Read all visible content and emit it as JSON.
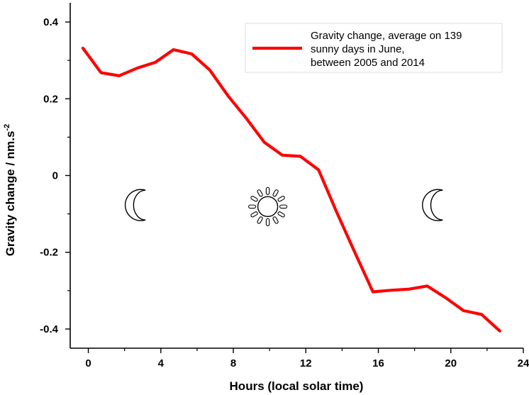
{
  "chart_data": {
    "type": "line",
    "xlabel": "Hours (local solar time)",
    "ylabel": "Gravity change / nm.s",
    "ylabel_superscript": "-2",
    "xlim": [
      -1,
      24
    ],
    "ylim": [
      -0.45,
      0.45
    ],
    "x_ticks": [
      0,
      4,
      8,
      12,
      16,
      20,
      24
    ],
    "x_tick_labels": [
      "0",
      "4",
      "8",
      "12",
      "16",
      "20",
      "24"
    ],
    "y_ticks": [
      0.4,
      0.2,
      0,
      -0.2,
      -0.4
    ],
    "y_tick_labels": [
      "0.4",
      "0.2",
      "0",
      "-0.2",
      "-0.4"
    ],
    "grid": false,
    "legend_position": "top-right",
    "series": [
      {
        "name_lines": [
          "Gravity change, average on 139",
          "sunny days in June,",
          "between 2005 and 2014"
        ],
        "color": "#ff0000",
        "x": [
          -0.3,
          0.7,
          1.7,
          2.7,
          3.7,
          4.7,
          5.7,
          6.7,
          7.7,
          8.7,
          9.7,
          10.7,
          11.7,
          12.7,
          13.7,
          14.7,
          15.7,
          16.7,
          17.7,
          18.7,
          19.7,
          20.7,
          21.7,
          22.7
        ],
        "y": [
          0.332,
          0.268,
          0.26,
          0.28,
          0.295,
          0.328,
          0.317,
          0.275,
          0.208,
          0.15,
          0.087,
          0.053,
          0.05,
          0.015,
          -0.095,
          -0.2,
          -0.303,
          -0.299,
          -0.296,
          -0.288,
          -0.318,
          -0.352,
          -0.362,
          -0.405
        ]
      }
    ],
    "annotations": [
      {
        "icon": "moon-icon",
        "x": 2.8,
        "y": -0.077
      },
      {
        "icon": "sun-icon",
        "x": 9.9,
        "y": -0.081
      },
      {
        "icon": "moon-icon",
        "x": 19.2,
        "y": -0.077
      }
    ]
  }
}
